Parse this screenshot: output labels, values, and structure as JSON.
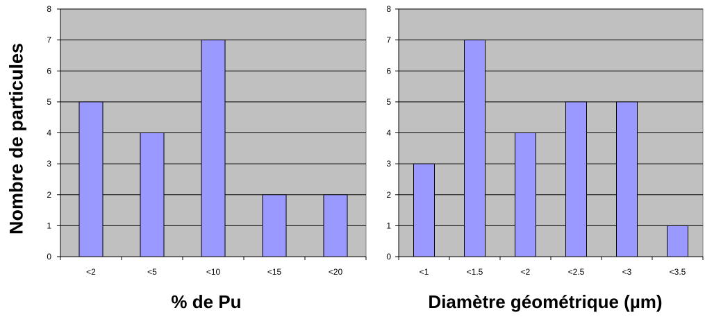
{
  "shared_ylabel": "Nombre de particules",
  "chart_data": [
    {
      "type": "bar",
      "categories": [
        "<2",
        "<5",
        "<10",
        "<15",
        "<20"
      ],
      "values": [
        5,
        4,
        7,
        2,
        2
      ],
      "xlabel": "% de Pu",
      "ylabel": "Nombre de particules",
      "ylim": [
        0,
        8
      ],
      "yticks": [
        0,
        1,
        2,
        3,
        4,
        5,
        6,
        7,
        8
      ],
      "grid": true,
      "legend": "none",
      "colors": {
        "bar": "#9999ff",
        "plot_bg": "#c0c0c0",
        "edge": "#000000"
      }
    },
    {
      "type": "bar",
      "categories": [
        "<1",
        "<1.5",
        "<2",
        "<2.5",
        "<3",
        "<3.5"
      ],
      "values": [
        3,
        7,
        4,
        5,
        5,
        1
      ],
      "xlabel": "Diamètre géométrique (µm)",
      "ylabel": "",
      "ylim": [
        0,
        8
      ],
      "yticks": [
        0,
        1,
        2,
        3,
        4,
        5,
        6,
        7,
        8
      ],
      "grid": true,
      "legend": "none",
      "colors": {
        "bar": "#9999ff",
        "plot_bg": "#c0c0c0",
        "edge": "#000000"
      }
    }
  ]
}
